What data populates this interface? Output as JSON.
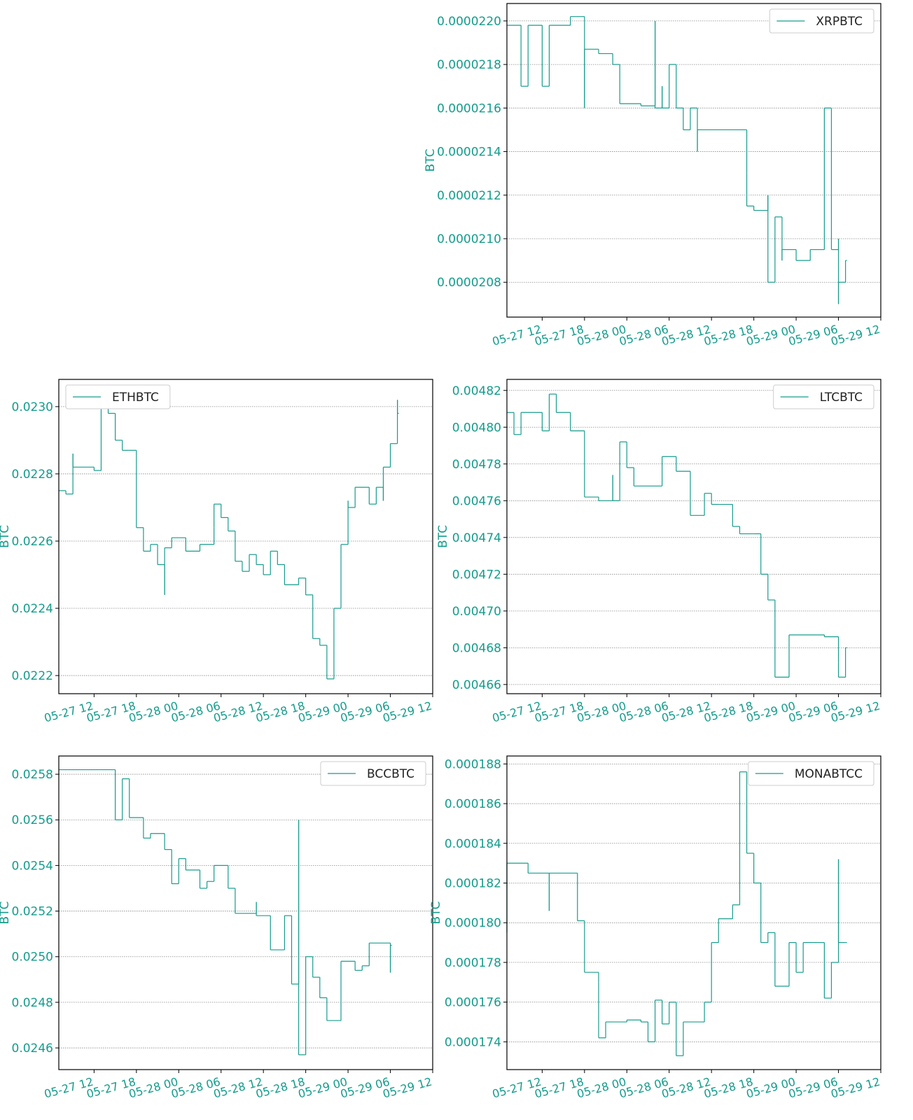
{
  "chart_data": [
    {
      "type": "line",
      "drawstyle": "steps-post",
      "ylabel": "BTC",
      "grid": true,
      "legend": "upper right",
      "xlim": [
        "05-27 07",
        "05-29 12"
      ],
      "xticks": [
        "05-27 12",
        "05-27 18",
        "05-28 00",
        "05-28 06",
        "05-28 12",
        "05-28 18",
        "05-29 00",
        "05-29 06",
        "05-29 12"
      ],
      "ylim": [
        2.064e-05,
        2.208e-05
      ],
      "yticks": [
        2.08e-05,
        {
          "value": 2.1e-05,
          "label": "0.0000210"
        },
        2.12e-05,
        2.14e-05,
        2.16e-05,
        2.18e-05,
        {
          "value": 2.2e-05,
          "label": "0.0000220"
        }
      ],
      "x": [
        "05-27 07",
        "05-27 09",
        "05-27 10",
        "05-27 12",
        "05-27 13",
        "05-27 16",
        "05-27 18",
        "05-27 18",
        "05-27 20",
        "05-27 22",
        "05-27 23",
        "05-28 02",
        "05-28 04",
        "05-28 04",
        "05-28 05",
        "05-28 05",
        "05-28 06",
        "05-28 07",
        "05-28 08",
        "05-28 09",
        "05-28 10",
        "05-28 10",
        "05-28 17",
        "05-28 17",
        "05-28 18",
        "05-28 20",
        "05-28 20",
        "05-28 21",
        "05-28 22",
        "05-28 22",
        "05-29 00",
        "05-29 02",
        "05-29 04",
        "05-29 04",
        "05-29 05",
        "05-29 06",
        "05-29 06",
        "05-29 06",
        "05-29 07"
      ],
      "series": [
        {
          "name": "XRPBTC",
          "color": "#179c8c",
          "values": [
            2.198e-05,
            2.17e-05,
            2.198e-05,
            2.17e-05,
            2.198e-05,
            2.202e-05,
            2.16e-05,
            2.187e-05,
            2.185e-05,
            2.18e-05,
            2.162e-05,
            2.161e-05,
            2.2e-05,
            2.16e-05,
            2.17e-05,
            2.16e-05,
            2.18e-05,
            2.16e-05,
            2.15e-05,
            2.16e-05,
            2.14e-05,
            2.15e-05,
            2.13e-05,
            2.115e-05,
            2.113e-05,
            2.12e-05,
            2.08e-05,
            2.11e-05,
            2.09e-05,
            2.095e-05,
            2.09e-05,
            2.095e-05,
            2.1e-05,
            2.16e-05,
            2.095e-05,
            2.1e-05,
            2.07e-05,
            2.08e-05,
            2.09e-05
          ]
        }
      ]
    },
    {
      "type": "line",
      "drawstyle": "steps-post",
      "ylabel": "BTC",
      "grid": true,
      "legend": "upper left",
      "xlim": [
        "05-27 07",
        "05-29 12"
      ],
      "xticks": [
        "05-27 12",
        "05-27 18",
        "05-28 00",
        "05-28 06",
        "05-28 12",
        "05-28 18",
        "05-29 00",
        "05-29 06",
        "05-29 12"
      ],
      "ylim": [
        0.022146,
        0.023081
      ],
      "yticks": [
        0.0222,
        0.0224,
        0.0226,
        0.0228,
        {
          "value": 0.023,
          "label": "0.0230"
        }
      ],
      "x": [
        "05-27 07",
        "05-27 08",
        "05-27 09",
        "05-27 09",
        "05-27 12",
        "05-27 13",
        "05-27 13",
        "05-27 14",
        "05-27 15",
        "05-27 16",
        "05-27 17",
        "05-27 18",
        "05-27 19",
        "05-27 19",
        "05-27 20",
        "05-27 21",
        "05-27 21",
        "05-27 22",
        "05-27 22",
        "05-27 23",
        "05-28 01",
        "05-28 03",
        "05-28 05",
        "05-28 05",
        "05-28 06",
        "05-28 07",
        "05-28 08",
        "05-28 09",
        "05-28 10",
        "05-28 11",
        "05-28 12",
        "05-28 13",
        "05-28 14",
        "05-28 15",
        "05-28 17",
        "05-28 18",
        "05-28 19",
        "05-28 20",
        "05-28 21",
        "05-28 21",
        "05-28 22",
        "05-28 23",
        "05-29 00",
        "05-29 00",
        "05-29 01",
        "05-29 03",
        "05-29 04",
        "05-29 05",
        "05-29 05",
        "05-29 06",
        "05-29 07",
        "05-29 07"
      ],
      "series": [
        {
          "name": "ETHBTC",
          "color": "#179c8c",
          "values": [
            0.02275,
            0.02274,
            0.02286,
            0.02282,
            0.02281,
            0.023,
            0.02303,
            0.02298,
            0.0229,
            0.02287,
            0.02287,
            0.02264,
            0.02262,
            0.02257,
            0.02259,
            0.02258,
            0.02253,
            0.02244,
            0.02258,
            0.02261,
            0.02257,
            0.02259,
            0.02264,
            0.02271,
            0.02267,
            0.02263,
            0.02254,
            0.02251,
            0.02256,
            0.02253,
            0.0225,
            0.02257,
            0.02253,
            0.02247,
            0.02249,
            0.02244,
            0.02231,
            0.02229,
            0.02222,
            0.02219,
            0.0224,
            0.02259,
            0.02272,
            0.0227,
            0.02276,
            0.02271,
            0.02276,
            0.02272,
            0.02282,
            0.02289,
            0.02302,
            0.02298
          ]
        }
      ]
    },
    {
      "type": "line",
      "drawstyle": "steps-post",
      "ylabel": "BTC",
      "grid": true,
      "legend": "upper right",
      "xlim": [
        "05-27 07",
        "05-29 12"
      ],
      "xticks": [
        "05-27 12",
        "05-27 18",
        "05-28 00",
        "05-28 06",
        "05-28 12",
        "05-28 18",
        "05-29 00",
        "05-29 06",
        "05-29 12"
      ],
      "ylim": [
        0.004655,
        0.004826
      ],
      "yticks": [
        0.00466,
        0.00468,
        {
          "value": 0.0047,
          "label": "0.00470"
        },
        0.00472,
        0.00474,
        0.00476,
        0.00478,
        {
          "value": 0.0048,
          "label": "0.00480"
        },
        0.00482
      ],
      "x": [
        "05-27 07",
        "05-27 08",
        "05-27 09",
        "05-27 12",
        "05-27 13",
        "05-27 14",
        "05-27 16",
        "05-27 18",
        "05-27 20",
        "05-27 20",
        "05-27 22",
        "05-27 22",
        "05-27 23",
        "05-28 00",
        "05-28 01",
        "05-28 05",
        "05-28 07",
        "05-28 09",
        "05-28 11",
        "05-28 12",
        "05-28 13",
        "05-28 15",
        "05-28 16",
        "05-28 18",
        "05-28 19",
        "05-28 20",
        "05-28 21",
        "05-28 21",
        "05-28 23",
        "05-29 04",
        "05-29 06",
        "05-29 06",
        "05-29 07"
      ],
      "series": [
        {
          "name": "LTCBTC",
          "color": "#179c8c",
          "values": [
            0.004808,
            0.004796,
            0.004808,
            0.004798,
            0.004818,
            0.004808,
            0.004798,
            0.004762,
            0.004762,
            0.00476,
            0.004774,
            0.00476,
            0.004792,
            0.004778,
            0.004768,
            0.004784,
            0.004776,
            0.004752,
            0.004764,
            0.004758,
            0.004758,
            0.004746,
            0.004742,
            0.004742,
            0.00472,
            0.004706,
            0.004696,
            0.004664,
            0.004687,
            0.004686,
            0.004672,
            0.004664,
            0.00468
          ]
        }
      ]
    },
    {
      "type": "line",
      "drawstyle": "steps-post",
      "ylabel": "BTC",
      "grid": true,
      "legend": "upper right",
      "xlim": [
        "05-27 07",
        "05-29 12"
      ],
      "xticks": [
        "05-27 12",
        "05-27 18",
        "05-28 00",
        "05-28 06",
        "05-28 12",
        "05-28 18",
        "05-29 00",
        "05-29 06",
        "05-29 12"
      ],
      "ylim": [
        0.024505,
        0.02588
      ],
      "yticks": [
        0.0246,
        0.0248,
        {
          "value": 0.025,
          "label": "0.0250"
        },
        0.0252,
        0.0254,
        0.0256,
        0.0258
      ],
      "x": [
        "05-27 07",
        "05-27 13",
        "05-27 15",
        "05-27 16",
        "05-27 17",
        "05-27 19",
        "05-27 20",
        "05-27 22",
        "05-27 23",
        "05-28 00",
        "05-28 01",
        "05-28 03",
        "05-28 04",
        "05-28 05",
        "05-28 07",
        "05-28 08",
        "05-28 11",
        "05-28 11",
        "05-28 13",
        "05-28 15",
        "05-28 16",
        "05-28 17",
        "05-28 17",
        "05-28 18",
        "05-28 19",
        "05-28 20",
        "05-28 21",
        "05-28 23",
        "05-29 01",
        "05-29 02",
        "05-29 03",
        "05-29 06",
        "05-29 06"
      ],
      "series": [
        {
          "name": "BCCBTC",
          "color": "#179c8c",
          "values": [
            0.02582,
            0.02582,
            0.0256,
            0.02578,
            0.02561,
            0.02552,
            0.02554,
            0.02547,
            0.02532,
            0.02543,
            0.02538,
            0.0253,
            0.02533,
            0.0254,
            0.0253,
            0.02519,
            0.02524,
            0.02518,
            0.02503,
            0.02518,
            0.02488,
            0.0256,
            0.02457,
            0.025,
            0.02491,
            0.02482,
            0.02472,
            0.02498,
            0.02494,
            0.02496,
            0.02506,
            0.02493,
            0.02505
          ]
        }
      ]
    },
    {
      "type": "line",
      "drawstyle": "steps-post",
      "ylabel": "BTC",
      "grid": true,
      "legend": "upper right",
      "xlim": [
        "05-27 07",
        "05-29 12"
      ],
      "xticks": [
        "05-27 12",
        "05-27 18",
        "05-28 00",
        "05-28 06",
        "05-28 12",
        "05-28 18",
        "05-29 00",
        "05-29 06",
        "05-29 12"
      ],
      "ylim": [
        0.0001726,
        0.0001884
      ],
      "yticks": [
        0.000174,
        0.000176,
        0.000178,
        {
          "value": 0.00018,
          "label": "0.000180"
        },
        0.000182,
        0.000184,
        0.000186,
        0.000188
      ],
      "x": [
        "05-27 07",
        "05-27 07",
        "05-27 10",
        "05-27 13",
        "05-27 13",
        "05-27 17",
        "05-27 18",
        "05-27 20",
        "05-27 20",
        "05-27 21",
        "05-28 00",
        "05-28 02",
        "05-28 03",
        "05-28 04",
        "05-28 05",
        "05-28 06",
        "05-28 07",
        "05-28 08",
        "05-28 11",
        "05-28 12",
        "05-28 13",
        "05-28 15",
        "05-28 16",
        "05-28 16",
        "05-28 17",
        "05-28 17",
        "05-28 18",
        "05-28 19",
        "05-28 20",
        "05-28 21",
        "05-28 23",
        "05-29 00",
        "05-29 01",
        "05-29 03",
        "05-29 04",
        "05-29 05",
        "05-29 06",
        "05-29 06",
        "05-29 07"
      ],
      "series": [
        {
          "name": "MONABTCC",
          "color": "#179c8c",
          "values": [
            0.0001795,
            0.000183,
            0.0001825,
            0.0001806,
            0.0001825,
            0.0001801,
            0.0001775,
            0.000177,
            0.0001742,
            0.000175,
            0.0001751,
            0.000175,
            0.000174,
            0.0001761,
            0.0001749,
            0.000176,
            0.0001733,
            0.000175,
            0.000176,
            0.000179,
            0.0001802,
            0.0001809,
            0.0001815,
            0.0001876,
            0.000185,
            0.0001835,
            0.000182,
            0.000179,
            0.0001795,
            0.0001768,
            0.000179,
            0.0001775,
            0.000179,
            0.000179,
            0.0001762,
            0.000178,
            0.0001832,
            0.000179,
            0.000179
          ]
        }
      ]
    }
  ]
}
